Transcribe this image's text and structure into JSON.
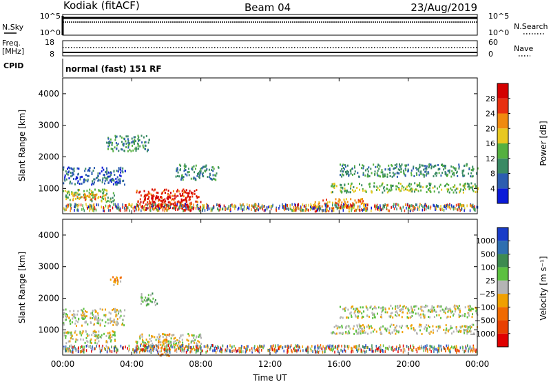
{
  "header": {
    "station": "Kodiak (fitACF)",
    "beam": "Beam 04",
    "date": "23/Aug/2019"
  },
  "top_panels": {
    "nsky_label": "N.Sky",
    "nsky_ticks": [
      "10^5",
      "10^0"
    ],
    "nsearch_label": "N.Search",
    "nsearch_ticks": [
      "10^5",
      "10^0"
    ],
    "freq_label_1": "Freq.",
    "freq_label_2": "[MHz]",
    "freq_ticks": [
      "18",
      "8"
    ],
    "nave_label": "Nave",
    "nave_ticks": [
      "60",
      "0"
    ],
    "cpid_label": "CPID",
    "cpid_text": "normal (fast) 151 RF"
  },
  "chart_data": [
    {
      "type": "heatmap",
      "title": "",
      "xlabel": "",
      "ylabel": "Slant Range [km]",
      "xlim": [
        0,
        24
      ],
      "ylim": [
        200,
        4500
      ],
      "x_tick_values": [
        0,
        4,
        8,
        12,
        16,
        20,
        24
      ],
      "y_tick_values": [
        1000,
        2000,
        3000,
        4000
      ],
      "y_tick_labels": [
        "1000",
        "2000",
        "3000",
        "4000"
      ],
      "colorbar": {
        "label": "Power [dB]",
        "tick_labels": [
          "4",
          "8",
          "12",
          "16",
          "20",
          "24",
          "28"
        ],
        "colors": [
          "#0a1ad8",
          "#2c5db0",
          "#3a8a64",
          "#55b040",
          "#e8c820",
          "#f08a10",
          "#e83010",
          "#d40000"
        ]
      },
      "regions": [
        {
          "x0": 0.0,
          "x1": 3.6,
          "y0": 1150,
          "y1": 1700,
          "level": 1
        },
        {
          "x0": 0.0,
          "x1": 3.0,
          "y0": 600,
          "y1": 1000,
          "level": 3
        },
        {
          "x0": 0.5,
          "x1": 2.5,
          "y0": 650,
          "y1": 850,
          "level": 5
        },
        {
          "x0": 2.5,
          "x1": 5.0,
          "y0": 2200,
          "y1": 2700,
          "level": 2
        },
        {
          "x0": 4.2,
          "x1": 8.0,
          "y0": 350,
          "y1": 1000,
          "level": 6
        },
        {
          "x0": 5.0,
          "x1": 7.3,
          "y0": 400,
          "y1": 800,
          "level": 7
        },
        {
          "x0": 6.5,
          "x1": 9.0,
          "y0": 1300,
          "y1": 1800,
          "level": 2
        },
        {
          "x0": 16.0,
          "x1": 24.0,
          "y0": 1400,
          "y1": 1800,
          "level": 2
        },
        {
          "x0": 15.5,
          "x1": 24.0,
          "y0": 900,
          "y1": 1200,
          "level": 3
        },
        {
          "x0": 14.5,
          "x1": 17.5,
          "y0": 300,
          "y1": 700,
          "level": 5
        }
      ]
    },
    {
      "type": "heatmap",
      "title": "",
      "xlabel": "Time UT",
      "ylabel": "Slant Range [km]",
      "xlim": [
        0,
        24
      ],
      "ylim": [
        200,
        4500
      ],
      "x_tick_values": [
        0,
        4,
        8,
        12,
        16,
        20,
        24
      ],
      "x_tick_labels": [
        "00:00",
        "04:00",
        "08:00",
        "12:00",
        "16:00",
        "20:00",
        "00:00"
      ],
      "y_tick_values": [
        1000,
        2000,
        3000,
        4000
      ],
      "y_tick_labels": [
        "1000",
        "2000",
        "3000",
        "4000"
      ],
      "colorbar": {
        "label": "Velocity [m s⁻¹]",
        "tick_labels": [
          "1000",
          "500",
          "100",
          "25",
          "−25",
          "−100",
          "−500",
          "−1000"
        ],
        "colors": [
          "#1a3cc8",
          "#2f6fb0",
          "#3d8a50",
          "#5cc040",
          "#b4b4b4",
          "#f0a000",
          "#f06a00",
          "#e84000",
          "#e00000"
        ]
      },
      "regions": [
        {
          "x0": 0.0,
          "x1": 3.6,
          "y0": 1150,
          "y1": 1700,
          "level": 4
        },
        {
          "x0": 0.0,
          "x1": 3.0,
          "y0": 600,
          "y1": 1000,
          "level": 4
        },
        {
          "x0": 2.6,
          "x1": 3.4,
          "y0": 2400,
          "y1": 2700,
          "level": 5
        },
        {
          "x0": 4.5,
          "x1": 5.5,
          "y0": 1800,
          "y1": 2200,
          "level": 3
        },
        {
          "x0": 4.2,
          "x1": 8.0,
          "y0": 400,
          "y1": 900,
          "level": 4
        },
        {
          "x0": 5.5,
          "x1": 6.2,
          "y0": 200,
          "y1": 900,
          "level": 5
        },
        {
          "x0": 16.0,
          "x1": 24.0,
          "y0": 1400,
          "y1": 1800,
          "level": 4
        },
        {
          "x0": 15.5,
          "x1": 24.0,
          "y0": 900,
          "y1": 1200,
          "level": 4
        }
      ]
    }
  ]
}
